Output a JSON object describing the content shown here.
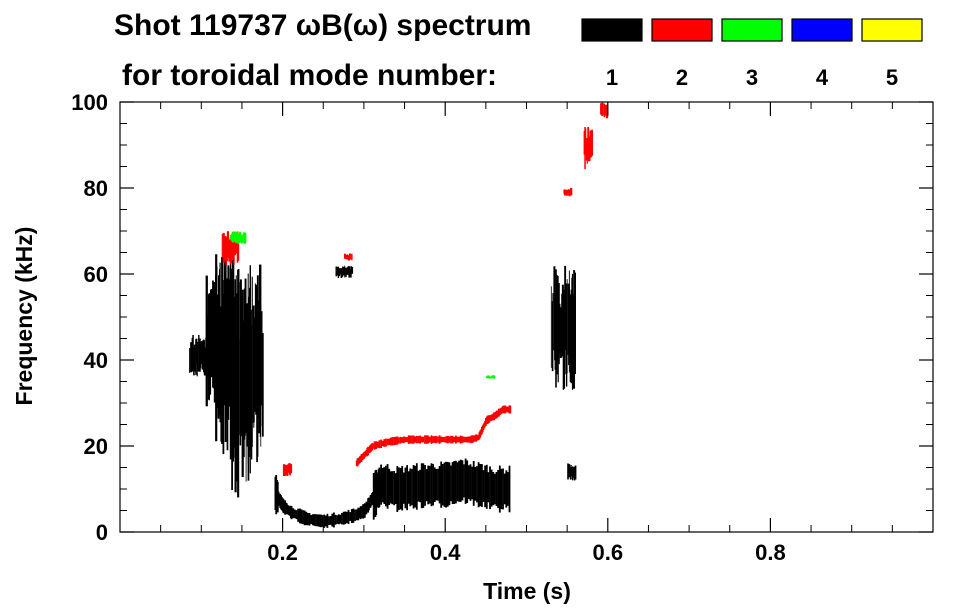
{
  "chart_data": {
    "type": "heatmap",
    "title": "Shot 119737 ωB(ω) spectrum",
    "subtitle": "for toroidal mode number:",
    "xlabel": "Time (s)",
    "ylabel": "Frequency (kHz)",
    "xlim": [
      0.0,
      1.0
    ],
    "ylim": [
      0,
      100
    ],
    "xticks": [
      0.2,
      0.4,
      0.6,
      0.8
    ],
    "xtick_labels": [
      "0.2",
      "0.4",
      "0.6",
      "0.8"
    ],
    "yticks": [
      0,
      20,
      40,
      60,
      80,
      100
    ],
    "ytick_labels": [
      "0",
      "20",
      "40",
      "60",
      "80",
      "100"
    ],
    "grid": false,
    "legend_position": "top-right",
    "legend": [
      {
        "label": "1",
        "color": "#000000"
      },
      {
        "label": "2",
        "color": "#ff0000"
      },
      {
        "label": "3",
        "color": "#00ff00"
      },
      {
        "label": "4",
        "color": "#0000ff"
      },
      {
        "label": "5",
        "color": "#ffff00"
      }
    ],
    "series": [
      {
        "mode": "1",
        "blobs": [
          {
            "x": [
              0.085,
              0.115
            ],
            "y": [
              36,
              46
            ]
          },
          {
            "x": [
              0.105,
              0.135
            ],
            "y": [
              28,
              60
            ]
          },
          {
            "x": [
              0.115,
              0.14
            ],
            "y": [
              15,
              66
            ]
          },
          {
            "x": [
              0.135,
              0.16
            ],
            "y": [
              8,
              62
            ]
          },
          {
            "x": [
              0.155,
              0.175
            ],
            "y": [
              12,
              63
            ]
          },
          {
            "x": [
              0.265,
              0.285
            ],
            "y": [
              59,
              62
            ]
          },
          {
            "x": [
              0.53,
              0.56
            ],
            "y": [
              33,
              62
            ]
          },
          {
            "x": [
              0.55,
              0.56
            ],
            "y": [
              12,
              16
            ]
          }
        ],
        "ridge": [
          {
            "x": 0.19,
            "y": 9
          },
          {
            "x": 0.2,
            "y": 6
          },
          {
            "x": 0.21,
            "y": 4.5
          },
          {
            "x": 0.23,
            "y": 3
          },
          {
            "x": 0.25,
            "y": 2.5
          },
          {
            "x": 0.27,
            "y": 3
          },
          {
            "x": 0.29,
            "y": 4
          },
          {
            "x": 0.3,
            "y": 5
          },
          {
            "x": 0.31,
            "y": 8
          },
          {
            "x": 0.32,
            "y": 11
          },
          {
            "x": 0.34,
            "y": 10
          },
          {
            "x": 0.36,
            "y": 10.5
          },
          {
            "x": 0.38,
            "y": 11
          },
          {
            "x": 0.4,
            "y": 11
          },
          {
            "x": 0.42,
            "y": 12
          },
          {
            "x": 0.44,
            "y": 11
          },
          {
            "x": 0.46,
            "y": 10
          },
          {
            "x": 0.48,
            "y": 10
          }
        ]
      },
      {
        "mode": "2",
        "blobs": [
          {
            "x": [
              0.125,
              0.145
            ],
            "y": [
              62,
              70
            ]
          },
          {
            "x": [
              0.545,
              0.555
            ],
            "y": [
              78,
              80
            ]
          },
          {
            "x": [
              0.57,
              0.58
            ],
            "y": [
              84,
              95
            ]
          },
          {
            "x": [
              0.59,
              0.6
            ],
            "y": [
              96,
              100
            ]
          },
          {
            "x": [
              0.275,
              0.285
            ],
            "y": [
              63,
              65
            ]
          },
          {
            "x": [
              0.2,
              0.21
            ],
            "y": [
              13,
              16
            ]
          }
        ],
        "ridge": [
          {
            "x": 0.29,
            "y": 16
          },
          {
            "x": 0.3,
            "y": 18
          },
          {
            "x": 0.31,
            "y": 20
          },
          {
            "x": 0.33,
            "y": 21
          },
          {
            "x": 0.35,
            "y": 21.5
          },
          {
            "x": 0.37,
            "y": 21.5
          },
          {
            "x": 0.39,
            "y": 21.5
          },
          {
            "x": 0.41,
            "y": 21.5
          },
          {
            "x": 0.43,
            "y": 21.5
          },
          {
            "x": 0.44,
            "y": 22
          },
          {
            "x": 0.45,
            "y": 26
          },
          {
            "x": 0.46,
            "y": 27
          },
          {
            "x": 0.47,
            "y": 28.5
          },
          {
            "x": 0.48,
            "y": 28.5
          }
        ]
      },
      {
        "mode": "3",
        "blobs": [
          {
            "x": [
              0.135,
              0.155
            ],
            "y": [
              67,
              70
            ]
          },
          {
            "x": [
              0.45,
              0.46
            ],
            "y": [
              35.5,
              36.5
            ]
          }
        ]
      }
    ]
  }
}
